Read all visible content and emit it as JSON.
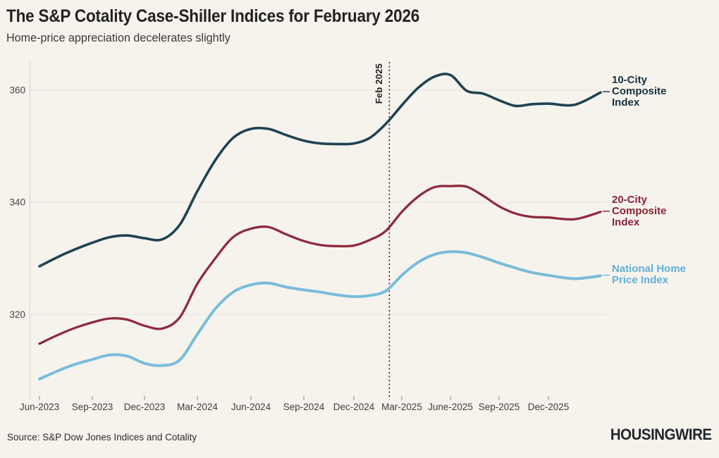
{
  "header": {
    "title": "The S&P Cotality Case-Shiller Indices for February 2026",
    "subtitle": "Home-price appreciation decelerates slightly"
  },
  "footer": {
    "source": "Source: S&P Dow Jones Indices and Cotality",
    "logo": "HOUSINGWIRE"
  },
  "colors": {
    "background": "#f6f3ed",
    "gridline": "#e8e4db",
    "annotation_line": "#1a1a1a"
  },
  "chart_data": {
    "type": "line",
    "title": "The S&P Cotality Case-Shiller Indices for February 2026",
    "subtitle": "Home-price appreciation decelerates slightly",
    "x": [
      "Jun-2023",
      "Jul-2023",
      "Aug-2023",
      "Sep-2023",
      "Oct-2023",
      "Nov-2023",
      "Dec-2023",
      "Jan-2024",
      "Feb-2024",
      "Mar-2024",
      "Apr-2024",
      "May-2024",
      "Jun-2024",
      "Jul-2024",
      "Aug-2024",
      "Sep-2024",
      "Oct-2024",
      "Nov-2024",
      "Dec-2024",
      "Jan-2025",
      "Feb-2025",
      "Mar-2025",
      "Apr-2025",
      "May-2025",
      "Jun-2025",
      "Jul-2025",
      "Aug-2025",
      "Sep-2025",
      "Oct-2025",
      "Nov-2025",
      "Dec-2025",
      "Jan-2026",
      "Feb-2026"
    ],
    "tick_labels": [
      "Jun-2023",
      "Sep-2023",
      "Dec-2023",
      "Mar-2024",
      "Jun-2024",
      "Sep-2024",
      "Dec-2024",
      "Mar-2025",
      "June-2025",
      "Sep-2025",
      "Dec-2025"
    ],
    "tick_indices": [
      0,
      3,
      6,
      9,
      12,
      15,
      18,
      21,
      24,
      27,
      30
    ],
    "yticks": [
      320,
      340,
      360
    ],
    "ylim": [
      305,
      365
    ],
    "grid": "horizontal-only",
    "legend_position": "right",
    "annotation": {
      "label": "Feb 2025",
      "x_index": 20
    },
    "series": [
      {
        "name": "10-City Composite Index",
        "label_lines": [
          "10-City",
          "Composite",
          "Index"
        ],
        "color": "#1f4452",
        "label_color": "#16323f",
        "width": 3.6,
        "values": [
          328.6,
          330.2,
          331.6,
          332.8,
          333.8,
          334.1,
          333.6,
          333.4,
          336.0,
          342.0,
          347.5,
          351.5,
          353.1,
          353.1,
          352.0,
          351.0,
          350.5,
          350.4,
          350.5,
          351.5,
          354.0,
          357.3,
          360.4,
          362.4,
          362.7,
          359.9,
          359.4,
          358.2,
          357.2,
          357.5,
          357.6,
          357.4,
          359.6
        ]
      },
      {
        "name": "20-City Composite Index",
        "label_lines": [
          "20-City",
          "Composite",
          "Index"
        ],
        "color": "#8e2b3b",
        "label_color": "#8c2232",
        "width": 3.3,
        "values": [
          314.8,
          316.3,
          317.6,
          318.6,
          319.3,
          319.1,
          318.0,
          317.5,
          319.5,
          325.5,
          330.0,
          333.8,
          335.3,
          335.6,
          334.3,
          333.1,
          332.4,
          332.2,
          332.3,
          333.3,
          334.9,
          338.3,
          341.0,
          342.7,
          342.9,
          342.8,
          341.2,
          339.3,
          338.0,
          337.4,
          337.3,
          337.0,
          338.3
        ]
      },
      {
        "name": "National Home Price Index",
        "label_lines": [
          "National Home",
          "Price Index"
        ],
        "color": "#79bcda",
        "label_color": "#5fb0d9",
        "width": 4,
        "values": [
          308.5,
          309.9,
          311.1,
          312.0,
          312.8,
          312.6,
          311.3,
          310.9,
          311.9,
          316.5,
          321.0,
          324.0,
          325.3,
          325.6,
          324.9,
          324.4,
          324.0,
          323.5,
          323.2,
          323.4,
          324.2,
          327.0,
          329.3,
          330.7,
          331.2,
          331.0,
          330.2,
          329.2,
          328.3,
          327.5,
          327.0,
          326.4,
          326.9
        ]
      }
    ]
  }
}
